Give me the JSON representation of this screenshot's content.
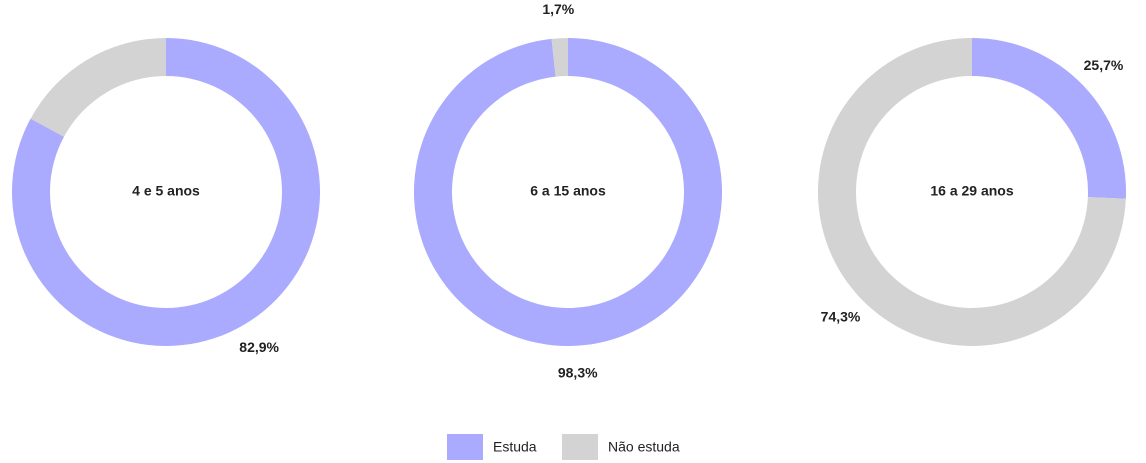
{
  "chart_data": [
    {
      "type": "pie",
      "title": "4 e 5 anos",
      "categories": [
        "Estuda",
        "Não estuda"
      ],
      "values": [
        82.9,
        17.1
      ],
      "value_labels": [
        "82,9%",
        null
      ],
      "colors": [
        "#aaaaff",
        "#d3d3d3"
      ]
    },
    {
      "type": "pie",
      "title": "6 a 15 anos",
      "categories": [
        "Estuda",
        "Não estuda"
      ],
      "values": [
        98.3,
        1.7
      ],
      "value_labels": [
        "98,3%",
        "1,7%"
      ],
      "colors": [
        "#aaaaff",
        "#d3d3d3"
      ]
    },
    {
      "type": "pie",
      "title": "16 a 29 anos",
      "categories": [
        "Estuda",
        "Não estuda"
      ],
      "values": [
        25.7,
        74.3
      ],
      "value_labels": [
        "25,7%",
        "74,3%"
      ],
      "colors": [
        "#aaaaff",
        "#d3d3d3"
      ]
    }
  ]
}
